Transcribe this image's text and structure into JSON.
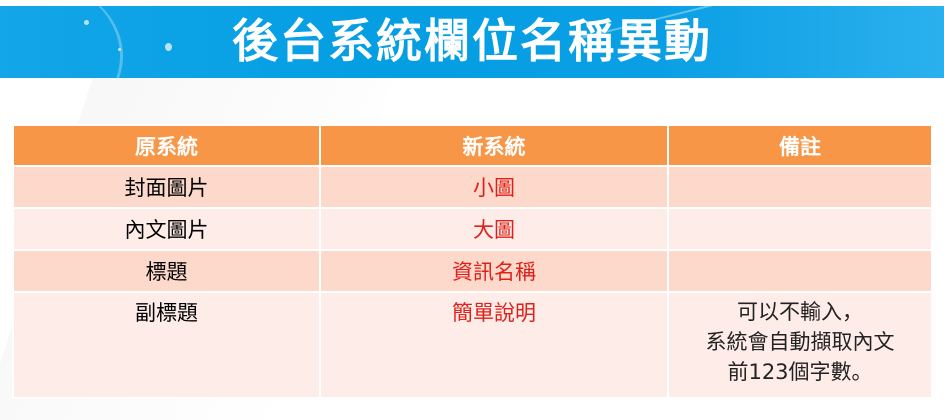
{
  "title": "後台系統欄位名稱異動",
  "table": {
    "headers": [
      "原系統",
      "新系統",
      "備註"
    ],
    "rows": [
      {
        "old": "封面圖片",
        "new": "小圖",
        "note": []
      },
      {
        "old": "內文圖片",
        "new": "大圖",
        "note": []
      },
      {
        "old": "標題",
        "new": "資訊名稱",
        "note": []
      },
      {
        "old": "副標題",
        "new": "簡單說明",
        "note": [
          "可以不輸入，",
          "系統會自動擷取內文",
          "前123個字數。"
        ]
      }
    ]
  },
  "colors": {
    "banner": "#049ee3",
    "header": "#f79646",
    "row_odd": "#fcd9cb",
    "row_even": "#fdece7",
    "new_text": "#e0201b"
  }
}
